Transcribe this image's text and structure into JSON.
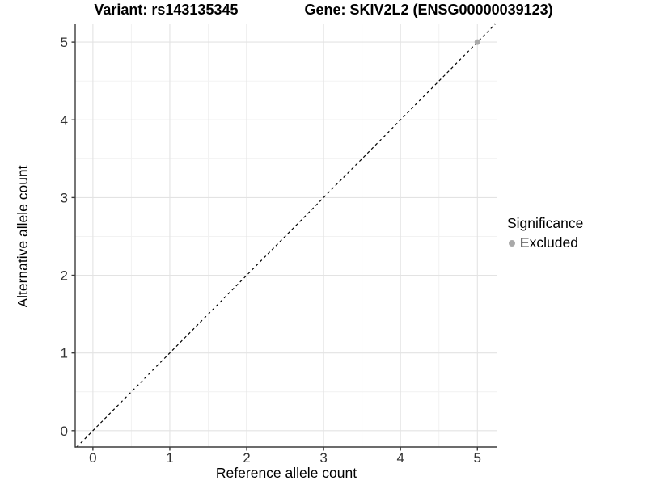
{
  "chart_data": {
    "type": "scatter",
    "title_variant": "Variant: rs143135345",
    "title_gene": "Gene: SKIV2L2 (ENSG00000039123)",
    "xlabel": "Reference allele count",
    "ylabel": "Alternative allele count",
    "x_ticks": [
      0,
      1,
      2,
      3,
      4,
      5
    ],
    "y_ticks": [
      0,
      1,
      2,
      3,
      4,
      5
    ],
    "xlim": [
      -0.23,
      5.26
    ],
    "ylim": [
      -0.21,
      5.23
    ],
    "grid": "major+minor",
    "legend_position": "right",
    "legend_title": "Significance",
    "series": [
      {
        "name": "Excluded",
        "color": "#a9a9a9",
        "points": [
          {
            "x": 5,
            "y": 5
          }
        ]
      }
    ],
    "reference_line": {
      "type": "identity",
      "slope": 1,
      "intercept": 0,
      "style": "dashed",
      "color": "#000000"
    }
  },
  "colors": {
    "background": "#ffffff",
    "grid_major": "#e3e3e3",
    "grid_minor": "#f1f1f1",
    "axis_line": "#3c3c3c",
    "tick_label": "#333333",
    "title_text": "#000000"
  }
}
